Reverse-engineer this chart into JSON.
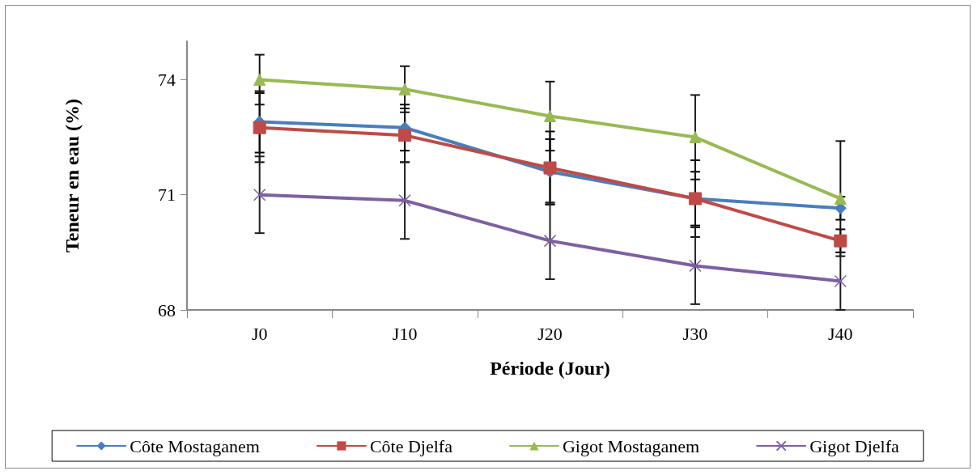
{
  "chart_data": {
    "type": "line",
    "xlabel": "Période (Jour)",
    "ylabel": "Teneur en eau (%)",
    "categories": [
      "J0",
      "J10",
      "J20",
      "J30",
      "J40"
    ],
    "series": [
      {
        "name": "Côte Mostaganem",
        "color": "#4a7ebb",
        "marker": "diamond",
        "values": [
          72.9,
          72.75,
          71.6,
          70.9,
          70.65
        ],
        "errors": [
          0.8,
          0.6,
          0.85,
          0.7,
          0.3
        ]
      },
      {
        "name": "Côte Djelfa",
        "color": "#be4b48",
        "marker": "square",
        "values": [
          72.75,
          72.55,
          71.7,
          70.9,
          69.8
        ],
        "errors": [
          0.9,
          0.7,
          0.95,
          1.0,
          0.3
        ]
      },
      {
        "name": "Gigot Mostaganem",
        "color": "#98b954",
        "marker": "triangle",
        "values": [
          74.0,
          73.75,
          73.05,
          72.5,
          70.9
        ],
        "errors": [
          0.65,
          0.6,
          0.9,
          1.1,
          1.5
        ]
      },
      {
        "name": "Gigot Djelfa",
        "color": "#7d60a0",
        "marker": "cross",
        "values": [
          71.0,
          70.85,
          69.8,
          69.15,
          68.75
        ],
        "errors": [
          1.0,
          1.0,
          1.0,
          1.0,
          0.75
        ]
      }
    ],
    "ylim": [
      68,
      75
    ],
    "yticks": [
      68,
      71,
      74
    ],
    "grid": false,
    "legend": "bottom",
    "line_style": "solid"
  }
}
